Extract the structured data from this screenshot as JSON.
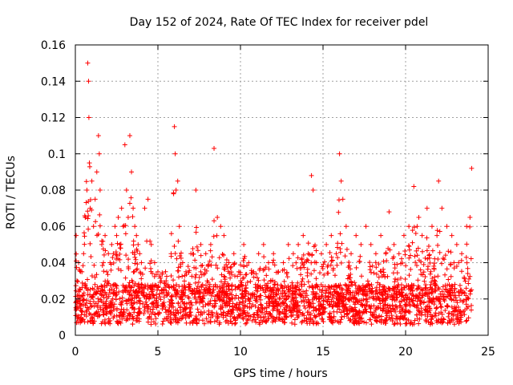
{
  "chart_data": {
    "type": "scatter",
    "title": "Day 152 of 2024, Rate Of TEC Index for receiver pdel",
    "xlabel": "GPS time / hours",
    "ylabel": "ROTI / TECUs",
    "xlim": [
      0,
      25
    ],
    "ylim": [
      0,
      0.16
    ],
    "x_ticks": [
      "0",
      "5",
      "10",
      "15",
      "20",
      "25"
    ],
    "y_ticks": [
      "0",
      "0.02",
      "0.04",
      "0.06",
      "0.08",
      "0.1",
      "0.12",
      "0.14",
      "0.16"
    ],
    "grid": true,
    "marker": "plus",
    "color": "#ff0000",
    "series": [
      {
        "name": "ROTI",
        "points_x": [
          0.05,
          0.1,
          0.2,
          0.3,
          0.4,
          0.5,
          0.6,
          0.7,
          0.75,
          0.8,
          0.82,
          0.85,
          0.9,
          1.0,
          1.1,
          1.2,
          1.3,
          1.4,
          1.45,
          1.5,
          1.6,
          1.7,
          1.8,
          1.9,
          2.0,
          2.1,
          2.2,
          2.3,
          2.4,
          2.5,
          2.6,
          2.7,
          2.8,
          2.9,
          3.0,
          3.1,
          3.2,
          3.3,
          3.4,
          3.5,
          3.6,
          3.7,
          3.8,
          3.9,
          4.0,
          4.2,
          4.4,
          4.6,
          4.8,
          5.0,
          5.2,
          5.5,
          5.8,
          6.0,
          6.05,
          6.1,
          6.2,
          6.3,
          6.5,
          6.7,
          7.0,
          7.3,
          7.6,
          7.9,
          8.2,
          8.4,
          8.6,
          8.8,
          9.0,
          9.3,
          9.6,
          9.9,
          10.2,
          10.5,
          10.8,
          11.1,
          11.4,
          11.7,
          12.0,
          12.3,
          12.6,
          12.9,
          13.2,
          13.5,
          13.8,
          14.1,
          14.3,
          14.4,
          14.6,
          14.9,
          15.2,
          15.5,
          15.8,
          16.0,
          16.1,
          16.2,
          16.4,
          16.7,
          17.0,
          17.3,
          17.6,
          17.9,
          18.2,
          18.5,
          18.8,
          19.0,
          19.3,
          19.6,
          19.9,
          20.2,
          20.5,
          20.7,
          20.8,
          21.0,
          21.3,
          21.6,
          21.9,
          22.0,
          22.2,
          22.5,
          22.8,
          23.1,
          23.4,
          23.7,
          23.9,
          24.0
        ],
        "points_y": [
          0.055,
          0.03,
          0.04,
          0.025,
          0.035,
          0.045,
          0.065,
          0.08,
          0.15,
          0.14,
          0.12,
          0.095,
          0.07,
          0.085,
          0.06,
          0.075,
          0.09,
          0.11,
          0.1,
          0.08,
          0.05,
          0.04,
          0.055,
          0.035,
          0.045,
          0.04,
          0.05,
          0.045,
          0.06,
          0.055,
          0.065,
          0.05,
          0.07,
          0.06,
          0.105,
          0.08,
          0.065,
          0.11,
          0.09,
          0.07,
          0.06,
          0.055,
          0.05,
          0.045,
          0.04,
          0.07,
          0.075,
          0.05,
          0.04,
          0.035,
          0.03,
          0.03,
          0.045,
          0.115,
          0.1,
          0.08,
          0.085,
          0.06,
          0.04,
          0.035,
          0.045,
          0.08,
          0.05,
          0.045,
          0.05,
          0.103,
          0.065,
          0.06,
          0.055,
          0.04,
          0.045,
          0.035,
          0.05,
          0.04,
          0.035,
          0.045,
          0.05,
          0.04,
          0.045,
          0.035,
          0.04,
          0.05,
          0.045,
          0.05,
          0.055,
          0.045,
          0.088,
          0.08,
          0.04,
          0.045,
          0.05,
          0.055,
          0.045,
          0.1,
          0.085,
          0.075,
          0.06,
          0.045,
          0.055,
          0.05,
          0.06,
          0.05,
          0.045,
          0.055,
          0.045,
          0.068,
          0.05,
          0.045,
          0.055,
          0.06,
          0.082,
          0.06,
          0.065,
          0.055,
          0.07,
          0.06,
          0.055,
          0.085,
          0.07,
          0.06,
          0.055,
          0.05,
          0.045,
          0.06,
          0.065,
          0.092
        ]
      }
    ]
  }
}
